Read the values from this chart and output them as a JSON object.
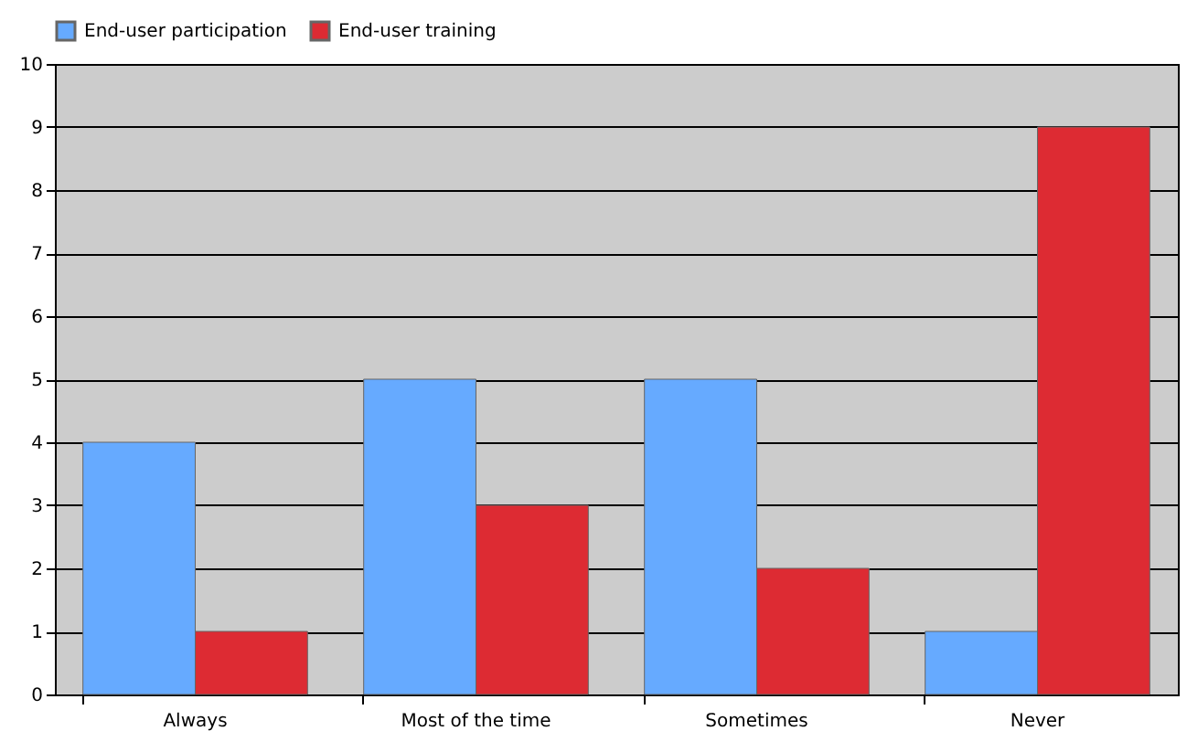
{
  "chart_data": {
    "type": "bar",
    "categories": [
      "Always",
      "Most of the time",
      "Sometimes",
      "Never"
    ],
    "series": [
      {
        "name": "End-user participation",
        "color": "#66aaff",
        "values": [
          4,
          5,
          5,
          1
        ]
      },
      {
        "name": "End-user training",
        "color": "#dd2b33",
        "values": [
          1,
          3,
          2,
          9
        ]
      }
    ],
    "ylim": [
      0,
      10
    ],
    "yticks": [
      0,
      1,
      2,
      3,
      4,
      5,
      6,
      7,
      8,
      9,
      10
    ],
    "grid": "y",
    "legend": "top"
  }
}
